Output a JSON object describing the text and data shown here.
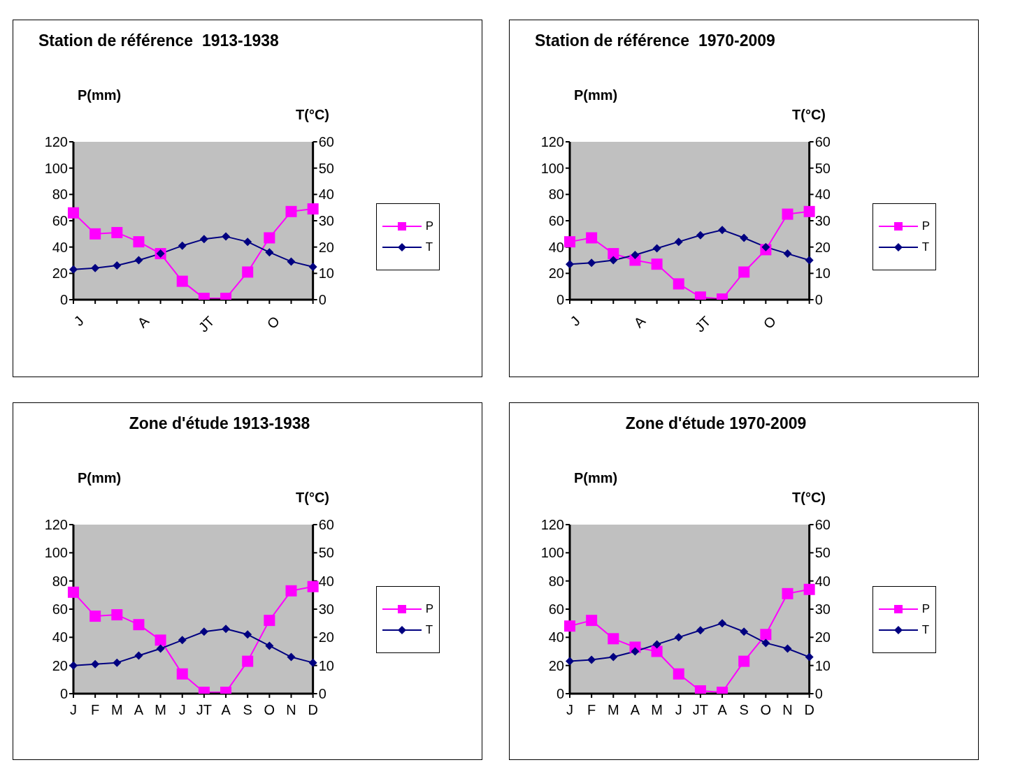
{
  "chart_data": [
    {
      "type": "line",
      "title": "Station de référence  1913-1938",
      "ylabel": "P(mm)",
      "y2label": "T(°C)",
      "categories": [
        "J",
        null,
        null,
        "A",
        null,
        null,
        "JT",
        null,
        null,
        "O",
        null,
        null
      ],
      "ylim": [
        0,
        120
      ],
      "yticks": [
        0,
        20,
        40,
        60,
        80,
        100,
        120
      ],
      "y2lim": [
        0,
        60
      ],
      "y2ticks": [
        0,
        10,
        20,
        30,
        40,
        50,
        60
      ],
      "legend": "right",
      "series": [
        {
          "name": "P",
          "color": "#ff00ff",
          "marker": "square",
          "values": [
            66,
            50,
            51,
            44,
            35,
            14,
            1,
            1,
            21,
            47,
            67,
            69
          ]
        },
        {
          "name": "T",
          "color": "#000080",
          "marker": "diamond",
          "axis": "y2",
          "values": [
            11.5,
            12,
            13,
            15,
            17.5,
            20.5,
            23,
            24,
            22,
            18,
            14.5,
            12.5
          ]
        }
      ]
    },
    {
      "type": "line",
      "title": "Station de référence  1970-2009",
      "ylabel": "P(mm)",
      "y2label": "T(°C)",
      "categories": [
        "J",
        null,
        null,
        "A",
        null,
        null,
        "JT",
        null,
        null,
        "O",
        null,
        null
      ],
      "ylim": [
        0,
        120
      ],
      "yticks": [
        0,
        20,
        40,
        60,
        80,
        100,
        120
      ],
      "y2lim": [
        0,
        60
      ],
      "y2ticks": [
        0,
        10,
        20,
        30,
        40,
        50,
        60
      ],
      "legend": "right",
      "series": [
        {
          "name": "P",
          "color": "#ff00ff",
          "marker": "square",
          "values": [
            44,
            47,
            35,
            30,
            27,
            12,
            2,
            0.5,
            21,
            38,
            65,
            67
          ]
        },
        {
          "name": "T",
          "color": "#000080",
          "marker": "diamond",
          "axis": "y2",
          "values": [
            13.5,
            14,
            15,
            17,
            19.5,
            22,
            24.5,
            26.5,
            23.5,
            20,
            17.5,
            15
          ]
        }
      ]
    },
    {
      "type": "line",
      "title": "Zone d'étude 1913-1938",
      "ylabel": "P(mm)",
      "y2label": "T(°C)",
      "categories": [
        "J",
        "F",
        "M",
        "A",
        "M",
        "J",
        "JT",
        "A",
        "S",
        "O",
        "N",
        "D"
      ],
      "ylim": [
        0,
        120
      ],
      "yticks": [
        0,
        20,
        40,
        60,
        80,
        100,
        120
      ],
      "y2lim": [
        0,
        60
      ],
      "y2ticks": [
        0,
        10,
        20,
        30,
        40,
        50,
        60
      ],
      "legend": "right",
      "series": [
        {
          "name": "P",
          "color": "#ff00ff",
          "marker": "square",
          "values": [
            72,
            55,
            56,
            49,
            38,
            14,
            1,
            1,
            23,
            52,
            73,
            76
          ]
        },
        {
          "name": "T",
          "color": "#000080",
          "marker": "diamond",
          "axis": "y2",
          "values": [
            10,
            10.5,
            11,
            13.5,
            16,
            19,
            22,
            23,
            21,
            17,
            13,
            11
          ]
        }
      ]
    },
    {
      "type": "line",
      "title": "Zone d'étude 1970-2009",
      "ylabel": "P(mm)",
      "y2label": "T(°C)",
      "categories": [
        "J",
        "F",
        "M",
        "A",
        "M",
        "J",
        "JT",
        "A",
        "S",
        "O",
        "N",
        "D"
      ],
      "ylim": [
        0,
        120
      ],
      "yticks": [
        0,
        20,
        40,
        60,
        80,
        100,
        120
      ],
      "y2lim": [
        0,
        60
      ],
      "y2ticks": [
        0,
        10,
        20,
        30,
        40,
        50,
        60
      ],
      "legend": "right",
      "series": [
        {
          "name": "P",
          "color": "#ff00ff",
          "marker": "square",
          "values": [
            48,
            52,
            39,
            33,
            30,
            14,
            2,
            1,
            23,
            42,
            71,
            74
          ]
        },
        {
          "name": "T",
          "color": "#000080",
          "marker": "diamond",
          "axis": "y2",
          "values": [
            11.5,
            12,
            13,
            15,
            17.5,
            20,
            22.5,
            25,
            22,
            18,
            16,
            13
          ]
        }
      ]
    }
  ]
}
